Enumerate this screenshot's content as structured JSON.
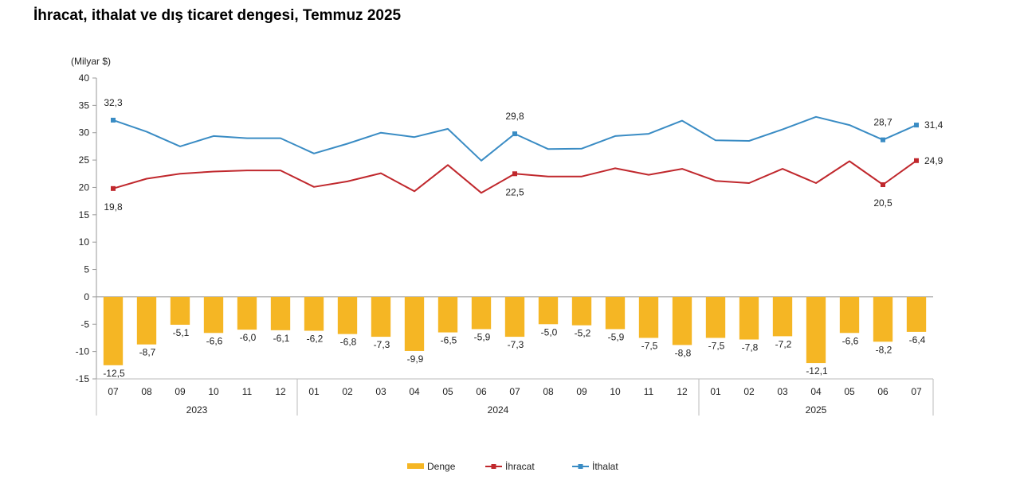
{
  "title": "İhracat, ithalat ve dış ticaret dengesi, Temmuz 2025",
  "chart_data": {
    "type": "bar+line",
    "title": "İhracat, ithalat ve dış ticaret dengesi, Temmuz 2025",
    "unit_label": "(Milyar $)",
    "ylim": [
      -15,
      40
    ],
    "yticks": [
      40,
      35,
      30,
      25,
      20,
      15,
      10,
      5,
      0,
      -5,
      -10,
      -15
    ],
    "months": [
      "07",
      "08",
      "09",
      "10",
      "11",
      "12",
      "01",
      "02",
      "03",
      "04",
      "05",
      "06",
      "07",
      "08",
      "09",
      "10",
      "11",
      "12",
      "01",
      "02",
      "03",
      "04",
      "05",
      "06",
      "07"
    ],
    "years": [
      {
        "label": "2023",
        "start": 0,
        "end": 5
      },
      {
        "label": "2024",
        "start": 6,
        "end": 17
      },
      {
        "label": "2025",
        "start": 18,
        "end": 24
      }
    ],
    "legend_position": "bottom",
    "series": [
      {
        "name": "Denge",
        "kind": "bar",
        "color": "#F5B624",
        "values": [
          -12.5,
          -8.7,
          -5.1,
          -6.6,
          -6.0,
          -6.1,
          -6.2,
          -6.8,
          -7.3,
          -9.9,
          -6.5,
          -5.9,
          -7.3,
          -5.0,
          -5.2,
          -5.9,
          -7.5,
          -8.8,
          -7.5,
          -7.8,
          -7.2,
          -12.1,
          -6.6,
          -8.2,
          -6.4
        ],
        "labels": [
          "-12,5",
          "-8,7",
          "-5,1",
          "-6,6",
          "-6,0",
          "-6,1",
          "-6,2",
          "-6,8",
          "-7,3",
          "-9,9",
          "-6,5",
          "-5,9",
          "-7,3",
          "-5,0",
          "-5,2",
          "-5,9",
          "-7,5",
          "-8,8",
          "-7,5",
          "-7,8",
          "-7,2",
          "-12,1",
          "-6,6",
          "-8,2",
          "-6,4"
        ]
      },
      {
        "name": "İhracat",
        "kind": "line",
        "color": "#C0282D",
        "values": [
          19.8,
          21.6,
          22.5,
          22.9,
          23.1,
          23.1,
          20.1,
          21.1,
          22.6,
          19.3,
          24.1,
          19.0,
          22.5,
          22.0,
          22.0,
          23.5,
          22.3,
          23.4,
          21.2,
          20.8,
          23.4,
          20.8,
          24.8,
          20.5,
          24.9
        ],
        "labels": [
          {
            "i": 0,
            "text": "19,8"
          },
          {
            "i": 12,
            "text": "22,5"
          },
          {
            "i": 23,
            "text": "20,5"
          },
          {
            "i": 24,
            "text": "24,9"
          }
        ]
      },
      {
        "name": "İthalat",
        "kind": "line",
        "color": "#3A8CC4",
        "values": [
          32.3,
          30.2,
          27.5,
          29.4,
          29.0,
          29.0,
          26.2,
          28.0,
          30.0,
          29.2,
          30.7,
          24.9,
          29.8,
          27.0,
          27.1,
          29.4,
          29.8,
          32.2,
          28.6,
          28.5,
          30.6,
          32.9,
          31.4,
          28.7,
          31.4
        ],
        "labels": [
          {
            "i": 0,
            "text": "32,3"
          },
          {
            "i": 12,
            "text": "29,8"
          },
          {
            "i": 23,
            "text": "28,7"
          },
          {
            "i": 24,
            "text": "31,4"
          }
        ]
      }
    ]
  }
}
